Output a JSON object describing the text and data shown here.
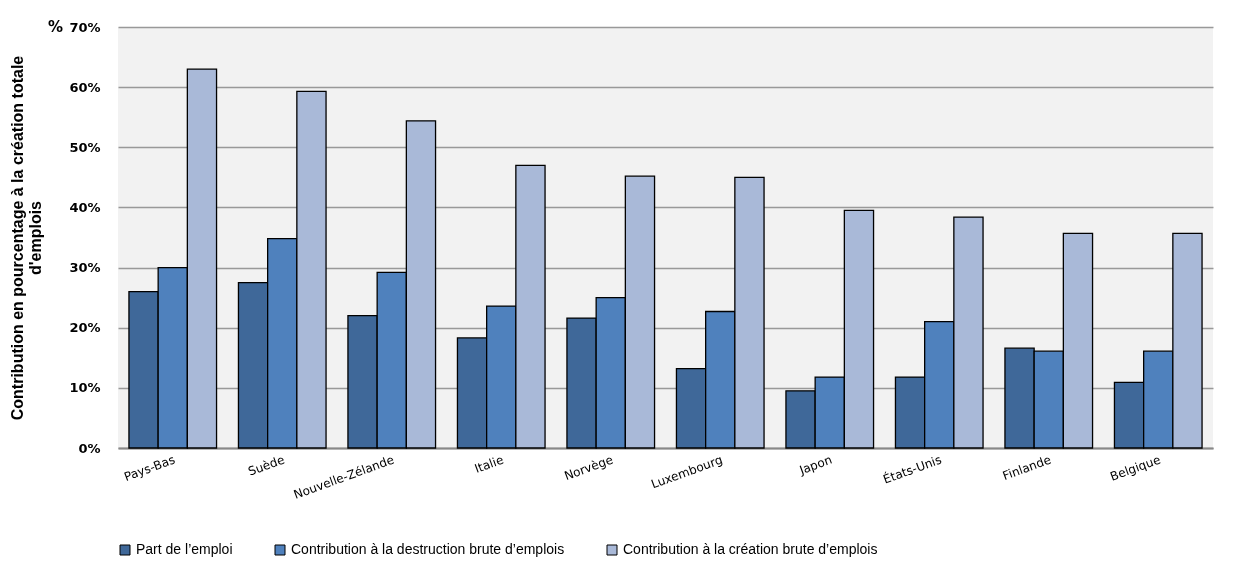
{
  "chart_data": {
    "type": "bar",
    "ylabel": "Contribution en pourcentage à la création totale d'emplois",
    "annotations": [
      "%"
    ],
    "categories": [
      "Pays-Bas",
      "Suède",
      "Nouvelle-Zélande",
      "Italie",
      "Norvège",
      "Luxembourg",
      "Japon",
      "États-Unis",
      "Finlande",
      "Belgique"
    ],
    "series": [
      {
        "name": "Part de l’emploi",
        "color": "#3f6899",
        "values": [
          26,
          27.5,
          22,
          18.3,
          21.6,
          13.2,
          9.5,
          11.8,
          16.6,
          10.9
        ]
      },
      {
        "name": "Contribution à la destruction brute d’emplois",
        "color": "#4f81bd",
        "values": [
          30,
          34.8,
          29.2,
          23.6,
          25,
          22.7,
          11.8,
          21,
          16.1,
          16.1
        ]
      },
      {
        "name": "Contribution à la création brute d’emplois",
        "color": "#a9b9d8",
        "values": [
          63,
          59.3,
          54.4,
          47,
          45.2,
          45,
          39.5,
          38.4,
          35.7,
          35.7
        ]
      }
    ],
    "ylim": [
      0,
      70
    ],
    "yticks": [
      {
        "value": 0,
        "label": "0%"
      },
      {
        "value": 10,
        "label": "10%"
      },
      {
        "value": 20,
        "label": "20%"
      },
      {
        "value": 30,
        "label": "30%"
      },
      {
        "value": 40,
        "label": "40%"
      },
      {
        "value": 50,
        "label": "50%"
      },
      {
        "value": 60,
        "label": "60%"
      },
      {
        "value": 70,
        "label": "70%"
      }
    ],
    "grid": "y",
    "legend": "bottom"
  }
}
